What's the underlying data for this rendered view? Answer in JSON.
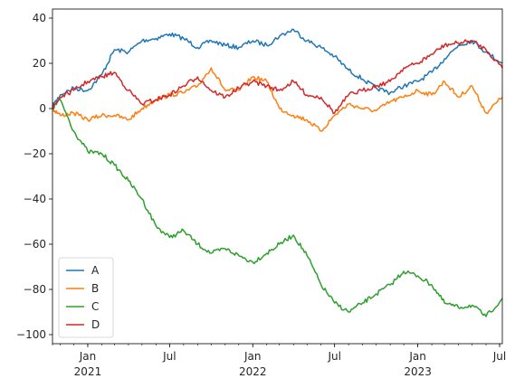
{
  "chart_data": {
    "type": "line",
    "x_axis": {
      "kind": "date",
      "range": [
        "2020-10-15",
        "2023-07-07"
      ],
      "major_ticks": [
        {
          "date": "2021-01-01",
          "label": "Jan",
          "year_label": "2021"
        },
        {
          "date": "2021-07-01",
          "label": "Jul",
          "year_label": ""
        },
        {
          "date": "2022-01-01",
          "label": "Jan",
          "year_label": "2022"
        },
        {
          "date": "2022-07-01",
          "label": "Jul",
          "year_label": ""
        },
        {
          "date": "2023-01-01",
          "label": "Jan",
          "year_label": "2023"
        },
        {
          "date": "2023-07-01",
          "label": "Jul",
          "year_label": ""
        }
      ],
      "minor_ticks": "monthly"
    },
    "y_axis": {
      "range": [
        -104,
        44
      ],
      "ticks": [
        40,
        20,
        0,
        -20,
        -40,
        -60,
        -80,
        -100
      ],
      "tick_labels": [
        "40",
        "20",
        "0",
        "−20",
        "−40",
        "−60",
        "−80",
        "−100"
      ]
    },
    "grid": false,
    "legend": {
      "position": "lower-left"
    },
    "series": [
      {
        "name": "A",
        "color": "#1f77b4",
        "dates": [
          "2020-10-15",
          "2020-11-01",
          "2020-12-01",
          "2021-01-01",
          "2021-02-01",
          "2021-03-01",
          "2021-04-01",
          "2021-05-01",
          "2021-06-01",
          "2021-07-01",
          "2021-08-01",
          "2021-09-01",
          "2021-10-01",
          "2021-11-01",
          "2021-12-01",
          "2022-01-01",
          "2022-02-01",
          "2022-03-01",
          "2022-04-01",
          "2022-05-01",
          "2022-06-01",
          "2022-07-01",
          "2022-08-01",
          "2022-09-01",
          "2022-10-01",
          "2022-11-01",
          "2022-12-01",
          "2023-01-01",
          "2023-02-01",
          "2023-03-01",
          "2023-04-01",
          "2023-05-01",
          "2023-06-01",
          "2023-07-07"
        ],
        "values": [
          1,
          6,
          9,
          8,
          15,
          26,
          25,
          30,
          31,
          33,
          31,
          27,
          30,
          28,
          27,
          30,
          28,
          32,
          35,
          30,
          27,
          23,
          17,
          13,
          9,
          7,
          10,
          12,
          16,
          22,
          28,
          30,
          25,
          20
        ]
      },
      {
        "name": "B",
        "color": "#ff7f0e",
        "dates": [
          "2020-10-15",
          "2020-11-01",
          "2020-12-01",
          "2021-01-01",
          "2021-02-01",
          "2021-03-01",
          "2021-04-01",
          "2021-05-01",
          "2021-06-01",
          "2021-07-01",
          "2021-08-01",
          "2021-09-01",
          "2021-10-01",
          "2021-11-01",
          "2021-12-01",
          "2022-01-01",
          "2022-02-01",
          "2022-03-01",
          "2022-04-01",
          "2022-05-01",
          "2022-06-01",
          "2022-07-01",
          "2022-08-01",
          "2022-09-01",
          "2022-10-01",
          "2022-11-01",
          "2022-12-01",
          "2023-01-01",
          "2023-02-01",
          "2023-03-01",
          "2023-04-01",
          "2023-05-01",
          "2023-06-01",
          "2023-07-07"
        ],
        "values": [
          0,
          -3,
          -2,
          -5,
          -3,
          -3,
          -5,
          0,
          4,
          6,
          7,
          10,
          18,
          8,
          8,
          14,
          12,
          0,
          -3,
          -5,
          -10,
          -3,
          2,
          0,
          -1,
          3,
          5,
          8,
          6,
          12,
          5,
          10,
          -2,
          5
        ]
      },
      {
        "name": "C",
        "color": "#2ca02c",
        "dates": [
          "2020-10-15",
          "2020-11-01",
          "2020-12-01",
          "2021-01-01",
          "2021-02-01",
          "2021-03-01",
          "2021-04-01",
          "2021-05-01",
          "2021-06-01",
          "2021-07-01",
          "2021-08-01",
          "2021-09-01",
          "2021-10-01",
          "2021-11-01",
          "2021-12-01",
          "2022-01-01",
          "2022-02-01",
          "2022-03-01",
          "2022-04-01",
          "2022-05-01",
          "2022-06-01",
          "2022-07-01",
          "2022-08-01",
          "2022-09-01",
          "2022-10-01",
          "2022-11-01",
          "2022-12-01",
          "2023-01-01",
          "2023-02-01",
          "2023-03-01",
          "2023-04-01",
          "2023-05-01",
          "2023-06-01",
          "2023-07-07"
        ],
        "values": [
          0,
          4,
          -10,
          -19,
          -20,
          -25,
          -32,
          -40,
          -52,
          -57,
          -54,
          -60,
          -64,
          -62,
          -65,
          -68,
          -64,
          -60,
          -56,
          -65,
          -78,
          -86,
          -90,
          -86,
          -82,
          -78,
          -72,
          -74,
          -78,
          -86,
          -88,
          -87,
          -92,
          -84
        ]
      },
      {
        "name": "D",
        "color": "#d62728",
        "dates": [
          "2020-10-15",
          "2020-11-01",
          "2020-12-01",
          "2021-01-01",
          "2021-02-01",
          "2021-03-01",
          "2021-04-01",
          "2021-05-01",
          "2021-06-01",
          "2021-07-01",
          "2021-08-01",
          "2021-09-01",
          "2021-10-01",
          "2021-11-01",
          "2021-12-01",
          "2022-01-01",
          "2022-02-01",
          "2022-03-01",
          "2022-04-01",
          "2022-05-01",
          "2022-06-01",
          "2022-07-01",
          "2022-08-01",
          "2022-09-01",
          "2022-10-01",
          "2022-11-01",
          "2022-12-01",
          "2023-01-01",
          "2023-02-01",
          "2023-03-01",
          "2023-04-01",
          "2023-05-01",
          "2023-06-01",
          "2023-07-07"
        ],
        "values": [
          0,
          5,
          8,
          12,
          14,
          16,
          8,
          2,
          4,
          6,
          10,
          14,
          8,
          5,
          9,
          12,
          10,
          8,
          12,
          6,
          5,
          -2,
          6,
          8,
          10,
          12,
          18,
          20,
          24,
          28,
          29,
          30,
          26,
          18
        ]
      }
    ]
  }
}
